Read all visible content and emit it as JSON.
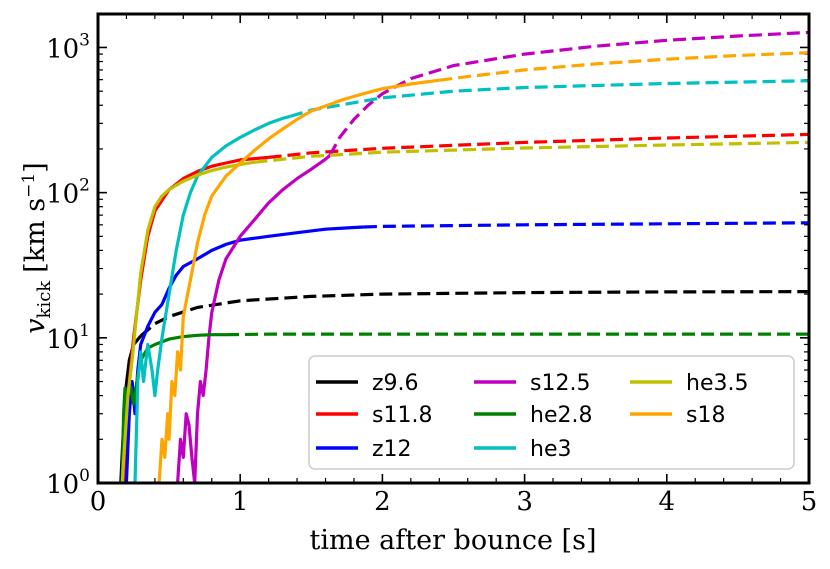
{
  "chart_data": {
    "type": "line",
    "x_label": "time after bounce [s]",
    "y_label_main": "v",
    "y_label_sub": "kick",
    "y_label_unit": "[km s",
    "y_label_unit_exp": "−1",
    "y_label_unit_close": "]",
    "x_range": [
      0,
      5
    ],
    "y_range": [
      1,
      1700
    ],
    "y_scale": "log",
    "x_ticks": [
      {
        "value": 0,
        "label": "0"
      },
      {
        "value": 1,
        "label": "1"
      },
      {
        "value": 2,
        "label": "2"
      },
      {
        "value": 3,
        "label": "3"
      },
      {
        "value": 4,
        "label": "4"
      },
      {
        "value": 5,
        "label": "5"
      }
    ],
    "y_ticks": [
      {
        "value": 1,
        "base": "10",
        "exp": "0"
      },
      {
        "value": 10,
        "base": "10",
        "exp": "1"
      },
      {
        "value": 100,
        "base": "10",
        "exp": "2"
      },
      {
        "value": 1000,
        "base": "10",
        "exp": "3"
      }
    ],
    "legend_position": "bottom-right",
    "legend_columns": 3,
    "series": [
      {
        "name": "z9.6",
        "color": "#000000",
        "solid": [
          [
            0.16,
            1
          ],
          [
            0.19,
            4
          ],
          [
            0.22,
            7
          ],
          [
            0.25,
            9
          ],
          [
            0.3,
            10.3
          ]
        ],
        "dashed": [
          [
            0.3,
            10.3
          ],
          [
            0.4,
            12.5
          ],
          [
            0.5,
            14
          ],
          [
            0.7,
            16.2
          ],
          [
            1,
            18
          ],
          [
            1.5,
            19.3
          ],
          [
            2,
            20
          ],
          [
            3,
            20.5
          ],
          [
            4,
            20.7
          ],
          [
            5,
            20.8
          ]
        ]
      },
      {
        "name": "s11.8",
        "color": "#ff0000",
        "solid": [
          [
            0.18,
            1
          ],
          [
            0.2,
            3
          ],
          [
            0.22,
            5
          ],
          [
            0.25,
            10
          ],
          [
            0.3,
            25
          ],
          [
            0.35,
            50
          ],
          [
            0.4,
            75
          ],
          [
            0.5,
            105
          ],
          [
            0.6,
            125
          ],
          [
            0.7,
            140
          ],
          [
            0.8,
            152
          ],
          [
            0.9,
            160
          ],
          [
            1,
            168
          ],
          [
            1.2,
            175
          ]
        ],
        "dashed": [
          [
            1.2,
            175
          ],
          [
            1.5,
            188
          ],
          [
            2,
            202
          ],
          [
            3,
            222
          ],
          [
            4,
            238
          ],
          [
            5,
            252
          ]
        ]
      },
      {
        "name": "z12",
        "color": "#0000ff",
        "solid": [
          [
            0.2,
            1
          ],
          [
            0.22,
            3
          ],
          [
            0.24,
            5
          ],
          [
            0.26,
            3
          ],
          [
            0.28,
            6
          ],
          [
            0.3,
            9
          ],
          [
            0.35,
            12
          ],
          [
            0.4,
            15
          ],
          [
            0.45,
            17
          ],
          [
            0.5,
            22
          ],
          [
            0.55,
            27
          ],
          [
            0.6,
            31
          ],
          [
            0.7,
            35
          ],
          [
            0.8,
            40
          ],
          [
            0.9,
            44
          ],
          [
            1,
            47
          ],
          [
            1.2,
            50
          ],
          [
            1.4,
            53
          ],
          [
            1.6,
            56
          ],
          [
            1.8,
            57.5
          ],
          [
            1.87,
            58
          ]
        ],
        "dashed": [
          [
            1.87,
            58
          ],
          [
            2,
            58.5
          ],
          [
            3,
            60
          ],
          [
            4,
            61
          ],
          [
            5,
            62
          ]
        ]
      },
      {
        "name": "s12.5",
        "color": "#c000c0",
        "solid": [
          [
            0.56,
            1
          ],
          [
            0.58,
            2
          ],
          [
            0.6,
            1.5
          ],
          [
            0.62,
            3
          ],
          [
            0.64,
            2.5
          ],
          [
            0.66,
            1.5
          ],
          [
            0.68,
            1
          ],
          [
            0.7,
            3
          ],
          [
            0.72,
            5
          ],
          [
            0.74,
            4
          ],
          [
            0.76,
            6
          ],
          [
            0.78,
            10
          ],
          [
            0.8,
            15
          ],
          [
            0.85,
            25
          ],
          [
            0.9,
            35
          ],
          [
            1,
            50
          ],
          [
            1.1,
            65
          ],
          [
            1.2,
            85
          ],
          [
            1.3,
            105
          ],
          [
            1.4,
            125
          ],
          [
            1.5,
            145
          ],
          [
            1.6,
            170
          ],
          [
            1.63,
            180
          ]
        ],
        "dashed": [
          [
            1.63,
            180
          ],
          [
            1.7,
            240
          ],
          [
            1.8,
            320
          ],
          [
            1.9,
            400
          ],
          [
            2,
            480
          ],
          [
            2.2,
            610
          ],
          [
            2.5,
            750
          ],
          [
            3,
            900
          ],
          [
            3.5,
            1020
          ],
          [
            4,
            1120
          ],
          [
            4.5,
            1200
          ],
          [
            5,
            1270
          ]
        ]
      },
      {
        "name": "he2.8",
        "color": "#008000",
        "solid": [
          [
            0.17,
            1
          ],
          [
            0.18,
            3
          ],
          [
            0.19,
            4.5
          ],
          [
            0.21,
            4
          ],
          [
            0.23,
            4.6
          ],
          [
            0.25,
            3.5
          ],
          [
            0.28,
            5.5
          ],
          [
            0.3,
            7
          ],
          [
            0.35,
            8.5
          ],
          [
            0.4,
            9
          ],
          [
            0.5,
            9.8
          ],
          [
            0.6,
            10.2
          ],
          [
            0.7,
            10.4
          ],
          [
            0.8,
            10.5
          ],
          [
            0.9,
            10.5
          ]
        ],
        "dashed": [
          [
            0.9,
            10.5
          ],
          [
            1.2,
            10.6
          ],
          [
            2,
            10.6
          ],
          [
            3,
            10.6
          ],
          [
            4,
            10.6
          ],
          [
            5,
            10.6
          ]
        ]
      },
      {
        "name": "he3",
        "color": "#00c0c0",
        "solid": [
          [
            0.26,
            1
          ],
          [
            0.28,
            5
          ],
          [
            0.3,
            8
          ],
          [
            0.32,
            5
          ],
          [
            0.35,
            9
          ],
          [
            0.38,
            6
          ],
          [
            0.4,
            4
          ],
          [
            0.42,
            6
          ],
          [
            0.45,
            10
          ],
          [
            0.5,
            20
          ],
          [
            0.55,
            40
          ],
          [
            0.6,
            70
          ],
          [
            0.65,
            100
          ],
          [
            0.7,
            130
          ],
          [
            0.8,
            175
          ],
          [
            0.9,
            210
          ],
          [
            1,
            240
          ],
          [
            1.1,
            270
          ],
          [
            1.2,
            300
          ],
          [
            1.3,
            325
          ],
          [
            1.35,
            335
          ]
        ],
        "dashed": [
          [
            1.35,
            335
          ],
          [
            1.5,
            370
          ],
          [
            2,
            450
          ],
          [
            2.5,
            500
          ],
          [
            3,
            530
          ],
          [
            4,
            565
          ],
          [
            5,
            590
          ]
        ]
      },
      {
        "name": "he3.5",
        "color": "#c0c000",
        "solid": [
          [
            0.17,
            1
          ],
          [
            0.19,
            2
          ],
          [
            0.21,
            4
          ],
          [
            0.24,
            7
          ],
          [
            0.27,
            14
          ],
          [
            0.3,
            28
          ],
          [
            0.35,
            55
          ],
          [
            0.4,
            80
          ],
          [
            0.45,
            95
          ],
          [
            0.5,
            105
          ],
          [
            0.6,
            120
          ],
          [
            0.7,
            132
          ],
          [
            0.8,
            142
          ],
          [
            0.9,
            150
          ],
          [
            1,
            156
          ],
          [
            1.1,
            162
          ]
        ],
        "dashed": [
          [
            1.1,
            162
          ],
          [
            1.5,
            178
          ],
          [
            2,
            190
          ],
          [
            3,
            203
          ],
          [
            4,
            213
          ],
          [
            5,
            222
          ]
        ]
      },
      {
        "name": "s18",
        "color": "#ffa500",
        "solid": [
          [
            0.43,
            1
          ],
          [
            0.45,
            2
          ],
          [
            0.47,
            1.5
          ],
          [
            0.49,
            3
          ],
          [
            0.5,
            2
          ],
          [
            0.52,
            5
          ],
          [
            0.54,
            4
          ],
          [
            0.56,
            8
          ],
          [
            0.58,
            6
          ],
          [
            0.6,
            14
          ],
          [
            0.65,
            25
          ],
          [
            0.7,
            45
          ],
          [
            0.75,
            70
          ],
          [
            0.8,
            95
          ],
          [
            0.9,
            130
          ],
          [
            1,
            160
          ],
          [
            1.1,
            195
          ],
          [
            1.2,
            235
          ],
          [
            1.3,
            275
          ],
          [
            1.4,
            320
          ],
          [
            1.5,
            365
          ],
          [
            1.6,
            395
          ],
          [
            1.7,
            430
          ],
          [
            1.8,
            460
          ],
          [
            1.9,
            490
          ],
          [
            2,
            520
          ],
          [
            2.2,
            560
          ],
          [
            2.4,
            595
          ]
        ],
        "dashed": [
          [
            2.4,
            595
          ],
          [
            2.6,
            630
          ],
          [
            3,
            700
          ],
          [
            3.5,
            770
          ],
          [
            4,
            830
          ],
          [
            4.5,
            880
          ],
          [
            5,
            920
          ]
        ]
      }
    ]
  }
}
